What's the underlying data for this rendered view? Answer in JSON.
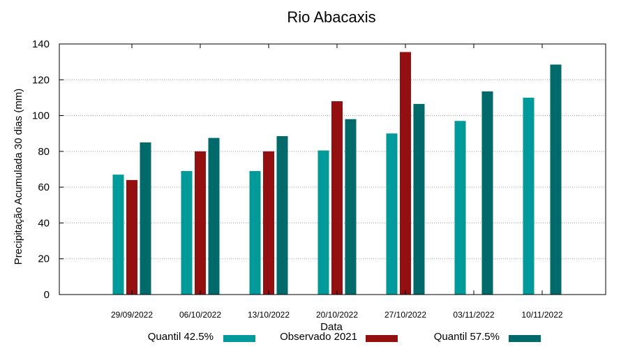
{
  "chart_data": {
    "type": "bar",
    "title": "Rio Abacaxis",
    "xlabel": "Data",
    "ylabel": "Precipitação Acumulada 30 dias (mm)",
    "ylim": [
      0,
      140
    ],
    "yticks": [
      0,
      20,
      40,
      60,
      80,
      100,
      120,
      140
    ],
    "grid": true,
    "legend_position": "bottom",
    "categories": [
      "29/09/2022",
      "06/10/2022",
      "13/10/2022",
      "20/10/2022",
      "27/10/2022",
      "03/11/2022",
      "10/11/2022"
    ],
    "series": [
      {
        "name": "Quantil 42.5%",
        "color": "#009a9a",
        "values": [
          67,
          69,
          69,
          80.5,
          90,
          97,
          110
        ]
      },
      {
        "name": "Observado 2021",
        "color": "#941010",
        "values": [
          64,
          80,
          80,
          108,
          135.5,
          null,
          null
        ]
      },
      {
        "name": "Quantil 57.5%",
        "color": "#006a6a",
        "values": [
          85,
          87.5,
          88.5,
          98,
          106.5,
          113.5,
          128.5
        ]
      }
    ]
  }
}
